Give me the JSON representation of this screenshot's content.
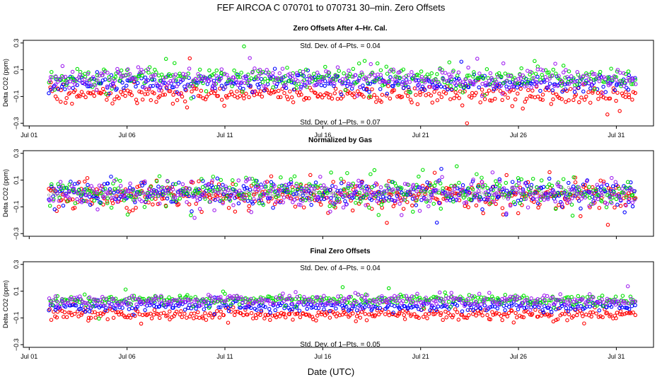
{
  "figure": {
    "title": "FEF   AIRCOA C   070701 to 070731   30–min. Zero Offsets",
    "xlabel": "Date (UTC)"
  },
  "colors": {
    "red": "#ff0000",
    "green": "#00e000",
    "blue": "#0000ff",
    "purple": "#a020f0",
    "gray": "#808080",
    "axis": "#000000"
  },
  "chart_data": [
    {
      "type": "scatter",
      "title": "Zero Offsets After 4–Hr. Cal.",
      "ylabel": "Delta CO2 (ppm)",
      "ylim": [
        -0.32,
        0.32
      ],
      "yticks": [
        -0.3,
        -0.1,
        0.1,
        0.3
      ],
      "ytick_labels": [
        "−0.3",
        "−0.1",
        "0.1",
        "0.3"
      ],
      "xlim": [
        0.7,
        32.9
      ],
      "xticks": [
        1,
        6,
        11,
        16,
        21,
        26,
        31
      ],
      "xtick_labels": [
        "Jul 01",
        "Jul 06",
        "Jul 11",
        "Jul 16",
        "Jul 21",
        "Jul 26",
        "Jul 31"
      ],
      "x_range": [
        2.0,
        32.0
      ],
      "annotations": {
        "top": "Std. Dev. of 4–Pts. =  0.04",
        "bottom": "Std. Dev. of 1–Pts. =  0.07"
      },
      "series": [
        {
          "name": "red",
          "mean": -0.08,
          "sd": 0.035
        },
        {
          "name": "blue",
          "mean": 0.0,
          "sd": 0.035
        },
        {
          "name": "green",
          "mean": 0.04,
          "sd": 0.035
        },
        {
          "name": "purple",
          "mean": 0.03,
          "sd": 0.04
        }
      ]
    },
    {
      "type": "scatter",
      "title": "Normalized by Gas",
      "ylabel": "Delta CO2 (ppm)",
      "ylim": [
        -0.32,
        0.32
      ],
      "yticks": [
        -0.3,
        -0.1,
        0.1,
        0.3
      ],
      "ytick_labels": [
        "−0.3",
        "−0.1",
        "0.1",
        "0.3"
      ],
      "xlim": [
        0.7,
        32.9
      ],
      "xticks": [
        1,
        6,
        11,
        16,
        21,
        26,
        31
      ],
      "xtick_labels": [
        "",
        "",
        "",
        "",
        "",
        "",
        ""
      ],
      "x_range": [
        2.0,
        32.0
      ],
      "series": [
        {
          "name": "gray",
          "mean": 0.0,
          "sd": 0.015
        },
        {
          "name": "red",
          "mean": -0.02,
          "sd": 0.05
        },
        {
          "name": "blue",
          "mean": 0.0,
          "sd": 0.05
        },
        {
          "name": "green",
          "mean": 0.01,
          "sd": 0.05
        },
        {
          "name": "purple",
          "mean": 0.0,
          "sd": 0.05
        }
      ]
    },
    {
      "type": "scatter",
      "title": "Final Zero Offsets",
      "ylabel": "Delta CO2 (ppm)",
      "ylim": [
        -0.32,
        0.32
      ],
      "yticks": [
        -0.3,
        -0.1,
        0.1,
        0.3
      ],
      "ytick_labels": [
        "−0.3",
        "−0.1",
        "0.1",
        "0.3"
      ],
      "xlim": [
        0.7,
        32.9
      ],
      "xticks": [
        1,
        6,
        11,
        16,
        21,
        26,
        31
      ],
      "xtick_labels": [
        "Jul 01",
        "Jul 06",
        "Jul 11",
        "Jul 16",
        "Jul 21",
        "Jul 26",
        "Jul 31"
      ],
      "x_range": [
        2.0,
        32.0
      ],
      "annotations": {
        "top": "Std. Dev. of 4–Pts. =  0.04",
        "bottom": "Std. Dev. of 1–Pts. =  0.05"
      },
      "series": [
        {
          "name": "red",
          "mean": -0.075,
          "sd": 0.022
        },
        {
          "name": "blue",
          "mean": -0.01,
          "sd": 0.02
        },
        {
          "name": "green",
          "mean": 0.035,
          "sd": 0.02
        },
        {
          "name": "purple",
          "mean": 0.03,
          "sd": 0.022
        }
      ]
    }
  ]
}
